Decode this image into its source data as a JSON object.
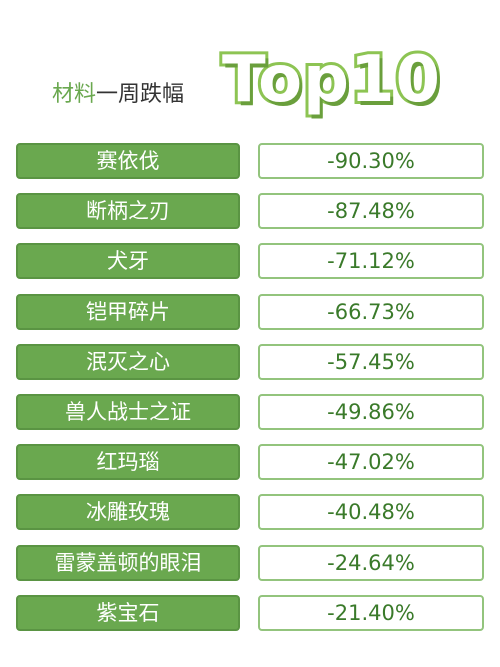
{
  "header": {
    "highlight": "材料",
    "rest": "一周跌幅",
    "big": "Top10"
  },
  "chart_data": {
    "type": "table",
    "title": "材料一周跌幅Top10",
    "items": [
      {
        "name": "赛依伐",
        "value": "-90.30%"
      },
      {
        "name": "断柄之刃",
        "value": "-87.48%"
      },
      {
        "name": "犬牙",
        "value": "-71.12%"
      },
      {
        "name": "铠甲碎片",
        "value": "-66.73%"
      },
      {
        "name": "泯灭之心",
        "value": "-57.45%"
      },
      {
        "name": "兽人战士之证",
        "value": "-49.86%"
      },
      {
        "name": "红玛瑙",
        "value": "-47.02%"
      },
      {
        "name": "冰雕玫瑰",
        "value": "-40.48%"
      },
      {
        "name": "雷蒙盖顿的眼泪",
        "value": "-24.64%"
      },
      {
        "name": "紫宝石",
        "value": "-21.40%"
      }
    ]
  }
}
